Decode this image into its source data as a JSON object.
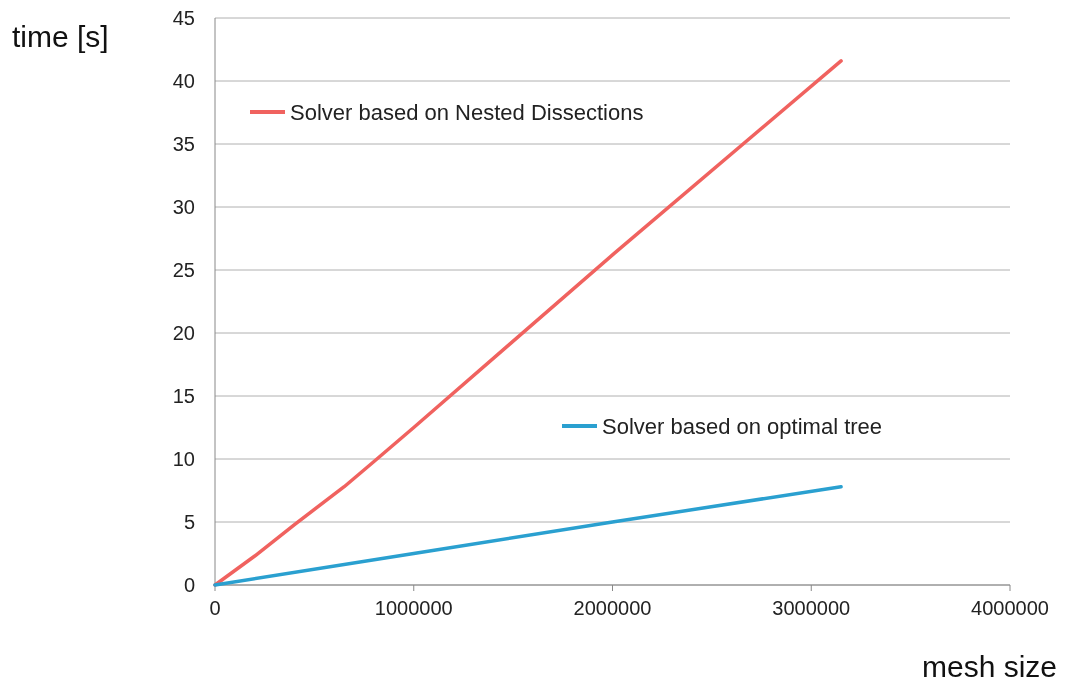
{
  "chart_data": {
    "type": "line",
    "xlabel": "mesh size",
    "ylabel": "time [s]",
    "xlim": [
      0,
      4000000
    ],
    "xticks": [
      0,
      1000000,
      2000000,
      3000000,
      4000000
    ],
    "ylim": [
      0,
      45
    ],
    "yticks": [
      0,
      5,
      10,
      15,
      20,
      25,
      30,
      35,
      40,
      45
    ],
    "grid": "y",
    "legend": "top left",
    "marker": "none",
    "line_style": "solid",
    "series": [
      {
        "name": "Solver based on Nested Dissections",
        "color": "#f0625f",
        "x": [
          0,
          200000,
          400000,
          650000,
          800000,
          1000000,
          2000000,
          3150000
        ],
        "values": [
          0,
          2.3,
          4.8,
          7.8,
          9.8,
          12.5,
          26.2,
          41.6
        ]
      },
      {
        "name": "Solver based on optimal tree",
        "color": "#2aa0d0",
        "x": [
          0,
          1000000,
          2000000,
          3150000
        ],
        "values": [
          0,
          2.5,
          5.0,
          7.8
        ]
      }
    ]
  }
}
